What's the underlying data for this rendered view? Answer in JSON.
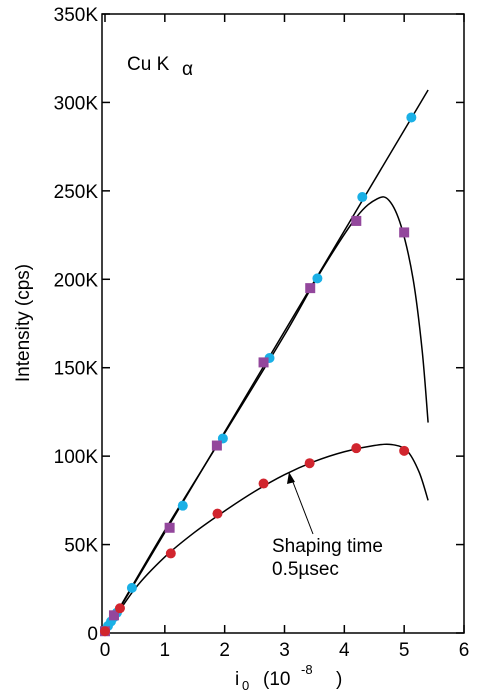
{
  "chart_data": {
    "type": "scatter",
    "title": "",
    "xlabel": {
      "main": "i",
      "sub": "0",
      "unit_open": "(10",
      "unit_exp": "-8",
      "unit_close": ")"
    },
    "ylabel": "Intensity  (cps)",
    "xlim": [
      -0.05,
      6
    ],
    "ylim": [
      0,
      350000
    ],
    "grid": false,
    "x_ticks": [
      0,
      1,
      2,
      3,
      4,
      5,
      6
    ],
    "y_ticks": [
      0,
      50000,
      100000,
      150000,
      200000,
      250000,
      300000,
      350000
    ],
    "y_tick_labels": [
      "0",
      "50K",
      "100K",
      "150K",
      "200K",
      "250K",
      "300K",
      "350K"
    ],
    "annotations": {
      "element_label": {
        "main": "Cu  K",
        "sub": "α"
      },
      "shaping_time_line1": "Shaping time",
      "shaping_time_line2": "0.5µsec"
    },
    "series": [
      {
        "marker": "circle",
        "color": "#1ab0e6",
        "points": [
          [
            0.0,
            1500
          ],
          [
            0.05,
            4000
          ],
          [
            0.1,
            6500
          ],
          [
            0.15,
            9000
          ],
          [
            0.2,
            11500
          ],
          [
            0.45,
            25500
          ],
          [
            1.3,
            72000
          ],
          [
            1.97,
            110000
          ],
          [
            2.75,
            155500
          ],
          [
            3.55,
            200500
          ],
          [
            4.3,
            246500
          ],
          [
            5.12,
            291500
          ]
        ],
        "fit_line": [
          [
            0,
            0
          ],
          [
            5.4,
            307000
          ]
        ]
      },
      {
        "marker": "square",
        "color": "#93479c",
        "points": [
          [
            0.0,
            1000
          ],
          [
            0.15,
            10000
          ],
          [
            1.08,
            59500
          ],
          [
            1.87,
            106000
          ],
          [
            2.65,
            153000
          ],
          [
            3.43,
            195000
          ],
          [
            4.2,
            233000
          ],
          [
            5.0,
            226500
          ]
        ],
        "fit_curve": [
          [
            0,
            0
          ],
          [
            1,
            58000
          ],
          [
            2,
            113000
          ],
          [
            3,
            168500
          ],
          [
            3.6,
            204000
          ],
          [
            4.2,
            235000
          ],
          [
            4.55,
            245500
          ],
          [
            4.75,
            244500
          ],
          [
            4.95,
            230000
          ],
          [
            5.15,
            200000
          ],
          [
            5.3,
            160000
          ],
          [
            5.4,
            119000
          ]
        ]
      },
      {
        "marker": "circle",
        "color": "#d1252e",
        "points": [
          [
            0.0,
            1000
          ],
          [
            0.25,
            14000
          ],
          [
            1.1,
            45000
          ],
          [
            1.88,
            67500
          ],
          [
            2.65,
            84500
          ],
          [
            3.42,
            96000
          ],
          [
            4.2,
            104500
          ],
          [
            5.0,
            103000
          ]
        ],
        "fit_curve": [
          [
            0,
            0
          ],
          [
            0.5,
            25000
          ],
          [
            1,
            43000
          ],
          [
            1.5,
            57000
          ],
          [
            2,
            69000
          ],
          [
            2.5,
            80000
          ],
          [
            3,
            89500
          ],
          [
            3.5,
            97000
          ],
          [
            4,
            102500
          ],
          [
            4.5,
            106000
          ],
          [
            4.8,
            106500
          ],
          [
            5.05,
            103000
          ],
          [
            5.25,
            91000
          ],
          [
            5.4,
            75000
          ]
        ]
      }
    ]
  }
}
